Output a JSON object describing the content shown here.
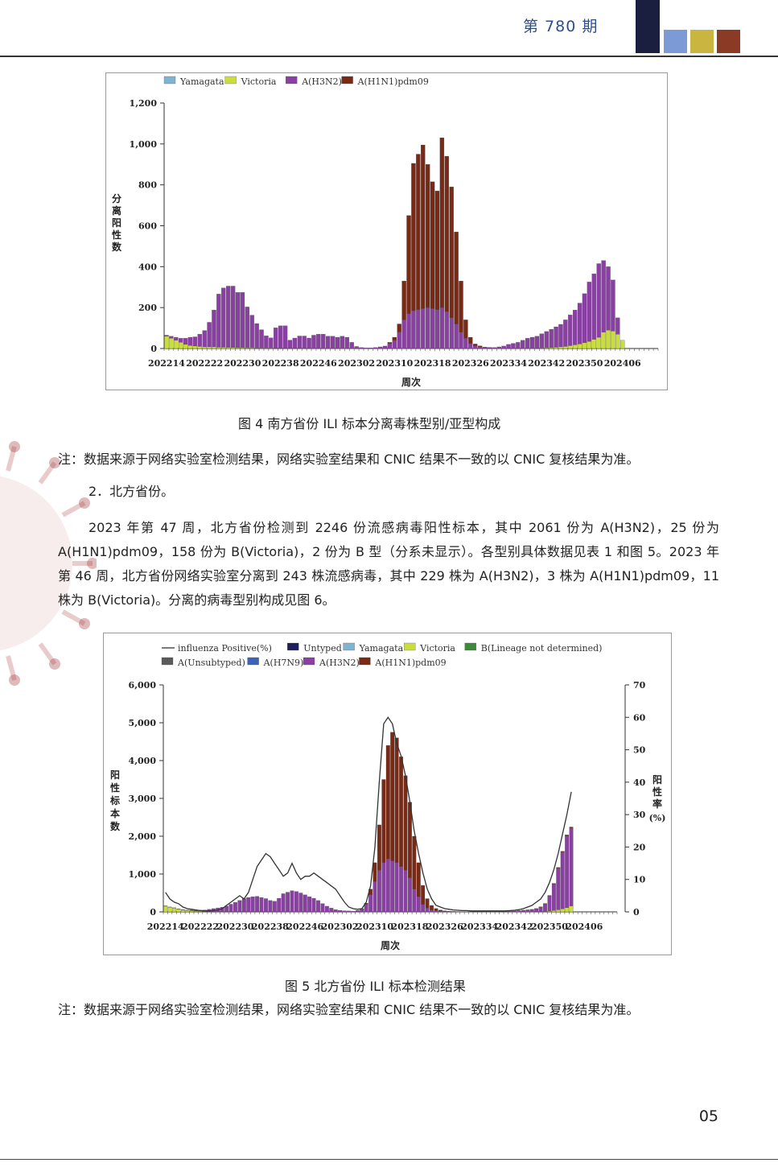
{
  "header": {
    "issue": "第 780 期",
    "colors": [
      "#1b1f3f",
      "#7b9ad6",
      "#c9b640",
      "#8b3a26"
    ]
  },
  "figure4": {
    "caption": "图 4 南方省份 ILI 标本分离毒株型别/亚型构成",
    "note": "注：数据来源于网络实验室检测结果，网络实验室结果和 CNIC 结果不一致的以 CNIC 复核结果为准。"
  },
  "section": {
    "heading": "2．北方省份。",
    "paragraph": "2023 年第 47 周，北方省份检测到 2246 份流感病毒阳性标本，其中 2061 份为 A(H3N2)，25 份为 A(H1N1)pdm09，158 份为 B(Victoria)，2 份为 B 型（分系未显示）。各型别具体数据见表 1 和图 5。2023 年第 46 周，北方省份网络实验室分离到 243 株流感病毒，其中 229 株为 A(H3N2)，3 株为 A(H1N1)pdm09，11 株为 B(Victoria)。分离的病毒型别构成见图 6。"
  },
  "figure5": {
    "caption": "图 5 北方省份 ILI 标本检测结果",
    "note": "注：数据来源于网络实验室检测结果，网络实验室结果和 CNIC 结果不一致的以 CNIC 复核结果为准。"
  },
  "page_number": "05",
  "chart_data": [
    {
      "type": "bar",
      "stacked": true,
      "xlabel": "周次",
      "ylabel": "分离阳性数",
      "ylim": [
        0,
        1200
      ],
      "yticks": [
        "0",
        "200",
        "400",
        "600",
        "800",
        "1,000",
        "1,200"
      ],
      "yticks_values": [
        0,
        200,
        400,
        600,
        800,
        1000,
        1200
      ],
      "xtick_labels": [
        "202214",
        "202222",
        "202230",
        "202238",
        "202246",
        "202302",
        "202310",
        "202318",
        "202326",
        "202334",
        "202342",
        "202350",
        "202406"
      ],
      "legend": [
        "Yamagata",
        "Victoria",
        "A(H3N2)",
        "A(H1N1)pdm09"
      ],
      "colors": {
        "Yamagata": "#7fb3cf",
        "Victoria": "#c9dd3c",
        "A(H3N2)": "#8a3fa3",
        "A(H1N1)pdm09": "#7a2a14"
      },
      "categories_count": 104,
      "series": [
        {
          "name": "Yamagata",
          "values": [
            0,
            0,
            0,
            0,
            0,
            0,
            0,
            0,
            0,
            0,
            0,
            0,
            0,
            0,
            0,
            0,
            0,
            0,
            0,
            0,
            0,
            0,
            0,
            0,
            0,
            0,
            0,
            0,
            0,
            0,
            0,
            0,
            0,
            0,
            0,
            0,
            0,
            0,
            0,
            0,
            0,
            0,
            0,
            0,
            0,
            0,
            0,
            0,
            0,
            0,
            0,
            0,
            0,
            0,
            0,
            0,
            0,
            0,
            0,
            0,
            0,
            0,
            0,
            0,
            0,
            0,
            0,
            0,
            0,
            0,
            0,
            0,
            0,
            0,
            0,
            0,
            0,
            0,
            0,
            0,
            0,
            0,
            0,
            0,
            0,
            0,
            0,
            0,
            0,
            0,
            0,
            0,
            0,
            0,
            0,
            0,
            0,
            0,
            0,
            0,
            0,
            0,
            0,
            0
          ]
        },
        {
          "name": "Victoria",
          "values": [
            60,
            50,
            40,
            30,
            20,
            15,
            12,
            10,
            8,
            8,
            8,
            6,
            6,
            5,
            5,
            4,
            4,
            3,
            3,
            2,
            2,
            2,
            2,
            1,
            1,
            1,
            1,
            1,
            1,
            1,
            1,
            0,
            0,
            0,
            0,
            0,
            0,
            0,
            0,
            0,
            0,
            0,
            0,
            0,
            0,
            0,
            0,
            0,
            0,
            0,
            0,
            0,
            0,
            0,
            0,
            0,
            0,
            0,
            0,
            0,
            0,
            0,
            0,
            0,
            0,
            0,
            0,
            0,
            0,
            0,
            0,
            0,
            0,
            0,
            0,
            0,
            0,
            0,
            0,
            2,
            3,
            4,
            6,
            8,
            10,
            14,
            18,
            22,
            28,
            35,
            45,
            55,
            80,
            90,
            85,
            70,
            40,
            0,
            0,
            0,
            0,
            0,
            0,
            0
          ]
        },
        {
          "name": "A(H3N2)",
          "values": [
            5,
            10,
            15,
            20,
            30,
            40,
            45,
            60,
            80,
            120,
            180,
            260,
            290,
            300,
            300,
            270,
            270,
            200,
            160,
            120,
            90,
            60,
            50,
            100,
            110,
            110,
            40,
            50,
            60,
            60,
            50,
            65,
            70,
            70,
            60,
            60,
            55,
            60,
            55,
            30,
            10,
            5,
            3,
            3,
            5,
            8,
            12,
            25,
            40,
            80,
            140,
            170,
            185,
            190,
            195,
            200,
            195,
            190,
            200,
            180,
            150,
            120,
            80,
            50,
            25,
            12,
            8,
            5,
            4,
            5,
            8,
            12,
            20,
            25,
            30,
            40,
            50,
            55,
            60,
            70,
            80,
            90,
            100,
            110,
            130,
            150,
            170,
            200,
            240,
            290,
            320,
            360,
            350,
            310,
            250,
            80,
            0,
            0,
            0,
            0,
            0,
            0,
            0,
            0
          ]
        },
        {
          "name": "A(H1N1)pdm09",
          "values": [
            0,
            0,
            0,
            0,
            0,
            0,
            0,
            0,
            0,
            0,
            0,
            0,
            0,
            0,
            0,
            0,
            0,
            0,
            0,
            0,
            0,
            0,
            0,
            0,
            0,
            0,
            0,
            0,
            0,
            0,
            0,
            0,
            0,
            0,
            0,
            0,
            0,
            0,
            0,
            0,
            0,
            0,
            0,
            0,
            0,
            0,
            0,
            5,
            15,
            40,
            190,
            480,
            720,
            760,
            800,
            700,
            620,
            580,
            830,
            760,
            640,
            450,
            250,
            90,
            30,
            10,
            5,
            2,
            1,
            0,
            0,
            0,
            0,
            0,
            0,
            0,
            0,
            0,
            0,
            0,
            0,
            0,
            0,
            0,
            0,
            0,
            0,
            0,
            0,
            0,
            0,
            0,
            0,
            0,
            0,
            0,
            0,
            0,
            0,
            0,
            0,
            0,
            0,
            0
          ]
        }
      ]
    },
    {
      "type": "bar",
      "stacked": true,
      "xlabel": "周次",
      "ylabel": "阳性标本数",
      "y2label": "阳性率(%)",
      "ylim": [
        0,
        6000
      ],
      "y2lim": [
        0,
        70
      ],
      "yticks": [
        "0",
        "1,000",
        "2,000",
        "3,000",
        "4,000",
        "5,000",
        "6,000"
      ],
      "yticks_values": [
        0,
        1000,
        2000,
        3000,
        4000,
        5000,
        6000
      ],
      "y2ticks": [
        "0",
        "10",
        "20",
        "30",
        "40",
        "50",
        "60",
        "70"
      ],
      "y2ticks_values": [
        0,
        10,
        20,
        30,
        40,
        50,
        60,
        70
      ],
      "xtick_labels": [
        "202214",
        "202222",
        "202230",
        "202238",
        "202246",
        "202302",
        "202310",
        "202318",
        "202326",
        "202334",
        "202342",
        "202350",
        "202406"
      ],
      "legend": [
        "influenza Positive(%)",
        "Untyped",
        "Yamagata",
        "Victoria",
        "B(Lineage not determined)",
        "A(Unsubtyped)",
        "A(H7N9)",
        "A(H3N2)",
        "A(H1N1)pdm09"
      ],
      "colors": {
        "influenza Positive(%)": "#333333",
        "Untyped": "#1f1f5c",
        "Yamagata": "#7fb3cf",
        "Victoria": "#c9dd3c",
        "B(Lineage not determined)": "#3d8a3a",
        "A(Unsubtyped)": "#5a5a5a",
        "A(H7N9)": "#3c63b8",
        "A(H3N2)": "#8a3fa3",
        "A(H1N1)pdm09": "#7a2a14"
      },
      "categories_count": 104,
      "series": [
        {
          "name": "Victoria",
          "values": [
            150,
            120,
            100,
            70,
            50,
            40,
            30,
            20,
            15,
            10,
            8,
            6,
            5,
            4,
            3,
            3,
            2,
            2,
            2,
            1,
            1,
            1,
            1,
            1,
            1,
            0,
            0,
            0,
            0,
            0,
            0,
            0,
            0,
            0,
            0,
            0,
            0,
            0,
            0,
            0,
            0,
            0,
            0,
            0,
            0,
            0,
            0,
            0,
            0,
            0,
            0,
            0,
            0,
            0,
            0,
            0,
            0,
            0,
            0,
            0,
            0,
            0,
            0,
            0,
            0,
            0,
            0,
            0,
            0,
            0,
            0,
            0,
            0,
            0,
            0,
            0,
            0,
            0,
            0,
            0,
            0,
            0,
            0,
            0,
            0,
            2,
            5,
            10,
            20,
            35,
            55,
            80,
            110,
            158,
            0,
            0,
            0,
            0,
            0,
            0,
            0,
            0,
            0,
            0
          ]
        },
        {
          "name": "A(H3N2)",
          "values": [
            10,
            10,
            10,
            10,
            10,
            10,
            15,
            20,
            30,
            40,
            60,
            80,
            100,
            120,
            150,
            200,
            250,
            300,
            350,
            380,
            400,
            410,
            380,
            350,
            300,
            280,
            360,
            480,
            520,
            560,
            540,
            500,
            450,
            400,
            360,
            300,
            220,
            150,
            100,
            60,
            40,
            30,
            25,
            20,
            40,
            80,
            200,
            450,
            800,
            1100,
            1300,
            1400,
            1350,
            1300,
            1200,
            1100,
            900,
            600,
            400,
            200,
            100,
            50,
            30,
            20,
            15,
            10,
            8,
            6,
            5,
            5,
            5,
            5,
            5,
            5,
            5,
            5,
            6,
            8,
            10,
            15,
            20,
            30,
            40,
            50,
            60,
            80,
            120,
            200,
            400,
            700,
            1100,
            1500,
            1900,
            2061,
            0,
            0,
            0,
            0,
            0,
            0,
            0,
            0,
            0,
            0
          ]
        },
        {
          "name": "A(H1N1)pdm09",
          "values": [
            0,
            0,
            0,
            0,
            0,
            0,
            0,
            0,
            0,
            0,
            0,
            0,
            0,
            0,
            0,
            0,
            0,
            0,
            0,
            0,
            0,
            0,
            0,
            0,
            0,
            0,
            0,
            0,
            0,
            0,
            0,
            0,
            0,
            0,
            0,
            0,
            0,
            0,
            0,
            0,
            0,
            0,
            0,
            0,
            0,
            5,
            30,
            150,
            500,
            1200,
            2200,
            3000,
            3400,
            3300,
            2900,
            2500,
            2000,
            1400,
            900,
            500,
            250,
            120,
            60,
            30,
            15,
            8,
            5,
            3,
            2,
            2,
            2,
            2,
            2,
            2,
            2,
            2,
            2,
            2,
            2,
            3,
            3,
            4,
            5,
            5,
            6,
            8,
            10,
            12,
            15,
            18,
            20,
            22,
            24,
            25,
            0,
            0,
            0,
            0,
            0,
            0,
            0,
            0,
            0,
            0
          ]
        }
      ],
      "line": {
        "name": "influenza Positive(%)",
        "values": [
          6,
          4,
          3,
          2.5,
          1.5,
          1,
          0.8,
          0.6,
          0.4,
          0.3,
          0.3,
          0.4,
          0.6,
          1,
          2,
          3,
          4,
          5,
          4,
          6,
          10,
          14,
          16,
          18,
          17,
          15,
          13,
          11,
          12,
          15,
          12,
          10,
          11,
          11,
          12,
          11,
          10,
          9,
          8,
          7,
          5,
          3,
          1.5,
          1,
          0.8,
          1,
          3,
          8,
          20,
          40,
          58,
          60,
          58,
          52,
          48,
          42,
          34,
          25,
          18,
          12,
          7,
          4,
          2,
          1.5,
          1,
          0.8,
          0.6,
          0.5,
          0.4,
          0.4,
          0.3,
          0.3,
          0.3,
          0.3,
          0.3,
          0.3,
          0.3,
          0.3,
          0.3,
          0.4,
          0.5,
          0.7,
          1,
          1.5,
          2,
          3,
          4,
          6,
          9,
          13,
          18,
          24,
          30,
          37
        ]
      }
    }
  ]
}
